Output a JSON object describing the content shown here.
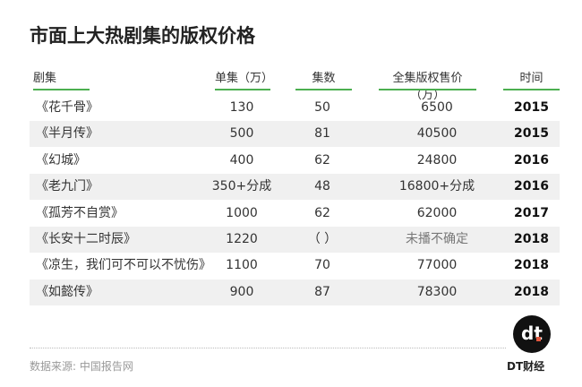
{
  "title": "市面上大热剧集的版权价格",
  "chart_data": {
    "type": "table",
    "title": "市面上大热剧集的版权价格",
    "columns": [
      "剧集",
      "单集（万）",
      "集数",
      "全集版权售价（万）",
      "时间"
    ],
    "rows": [
      [
        "《花千骨》",
        "130",
        "50",
        "6500",
        "2015"
      ],
      [
        "《半月传》",
        "500",
        "81",
        "40500",
        "2015"
      ],
      [
        "《幻城》",
        "400",
        "62",
        "24800",
        "2016"
      ],
      [
        "《老九门》",
        "350+分成",
        "48",
        "16800+分成",
        "2016"
      ],
      [
        "《孤芳不自赏》",
        "1000",
        "62",
        "62000",
        "2017"
      ],
      [
        "《长安十二时辰》",
        "1220",
        "（ ）",
        "未播不确定",
        "2018"
      ],
      [
        "《凉生，我们可不可以不忧伤》",
        "1100",
        "70",
        "77000",
        "2018"
      ],
      [
        "《如懿传》",
        "900",
        "87",
        "78300",
        "2018"
      ]
    ],
    "accent_color": "#4caf50"
  },
  "footer": {
    "source": "数据来源: 中国报告网",
    "brand": "DT财经",
    "logo_text": "dt"
  }
}
